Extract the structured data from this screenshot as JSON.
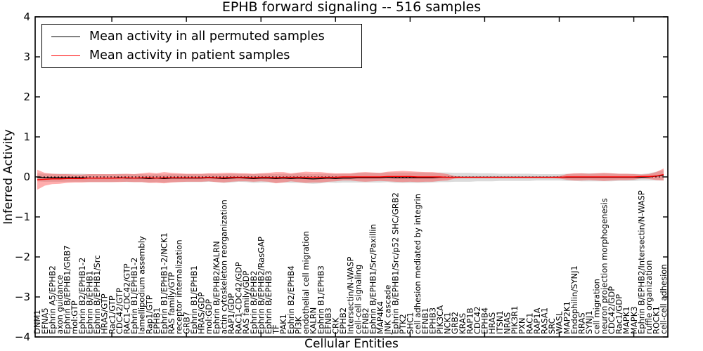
{
  "title": "EPHB forward signaling -- 516 samples",
  "legend": {
    "items": [
      {
        "label": "Mean activity in all permuted samples",
        "color": "#000000"
      },
      {
        "label": "Mean activity in patient samples",
        "color": "#ff0000"
      }
    ]
  },
  "chart_data": {
    "type": "line",
    "title": "EPHB forward signaling -- 516 samples",
    "xlabel": "Cellular Entities",
    "ylabel": "Inferred Activity",
    "ylim": [
      -4,
      4
    ],
    "yticks": {
      "values": [
        -4,
        -3,
        -2,
        -1,
        0,
        1,
        2,
        3,
        4
      ],
      "labels": [
        "−4",
        "−3",
        "−2",
        "−1",
        "0",
        "1",
        "2",
        "3",
        "4"
      ]
    },
    "x_major_tick_every": 10,
    "zero_line": {
      "style": "dotted",
      "color": "#000000",
      "y": 0
    },
    "grid": false,
    "legend_position": "upper left",
    "categories": [
      "DNM1",
      "EFNA5",
      "Ephrin A5/EPHB2",
      "axon guidance",
      "Ephrin B/EPHB1/GRB7",
      "mol:GTP",
      "Ephrin B2/EPHB1-2",
      "Ephrin B/EPHB1",
      "Ephrin B/EPHB1/Src",
      "HRAS/GTP",
      "Rac1/GTP",
      "CDC42/GTP",
      "RAC1-CDC42/GTP",
      "Ephrin B1/EPHB1-2",
      "lamellipodium assembly",
      "Rap1/GTP",
      "EPHB1",
      "Ephrin B1/EPHB1-2/NCK1",
      "RAS family/GTP",
      "receptor internalization",
      "GRB7",
      "Ephrin B1/EPHB1",
      "HRAS/GDP",
      "mol:GDP",
      "Ephrin B/EPHB2/KALRN",
      "actin cytoskeleton reorganization",
      "RAP1/GDP",
      "RAC1-CDC42/GDP",
      "RAS family/GDP",
      "Ephrin B/EPHB2",
      "Ephrin B/EPHB2/RasGAP",
      "Ephrin B/EPHB3",
      "TF",
      "PAK1",
      "Ephrin B2/EPHB4",
      "PI3K",
      "endothelial cell migration",
      "KALRN",
      "Ephrin B1/EPHB3",
      "EFNB3",
      "CRK",
      "EPHB2",
      "Intersectin/N-WASP",
      "cell-cell signaling",
      "EFNB2",
      "Ephrin B/EPHB1/Src/Paxillin",
      "MAP4K4",
      "JNK cascade",
      "Ephrin B/EPHB1/Src/p52 SHC/GRB2",
      "PTK2",
      "SHC1",
      "cell adhesion mediated by integrin",
      "EFNB1",
      "EPHB3",
      "PIK3CA",
      "NCK1",
      "GRB2",
      "KRAS",
      "RAP1B",
      "CDC42",
      "EPHB4",
      "HRAS",
      "ITSN1",
      "NRAS",
      "PIK3R1",
      "PXN",
      "RAC1",
      "RAP1A",
      "RASA1",
      "SRC",
      "WASL",
      "MAP2K1",
      "Endophilin/SYNJ1",
      "RRAS",
      "SYNJ1",
      "cell migration",
      "neuron projection morphogenesis",
      "CDC42/GDP",
      "Rac1/GDP",
      "MAPK1",
      "MAPK3",
      "Ephrin B/EPHB2/Intersectin/N-WASP",
      "ruffle organization",
      "ROCK1",
      "cell-cell adhesion"
    ],
    "series": [
      {
        "name": "Mean activity in all permuted samples",
        "color": "#000000",
        "band_color": "#999999",
        "band_opacity": 0.35,
        "values": [
          -0.01,
          -0.02,
          -0.02,
          -0.02,
          -0.02,
          -0.02,
          -0.02,
          -0.03,
          -0.03,
          -0.03,
          -0.03,
          -0.02,
          -0.03,
          -0.03,
          -0.03,
          -0.04,
          -0.03,
          -0.04,
          -0.03,
          -0.03,
          -0.03,
          -0.03,
          -0.03,
          -0.02,
          -0.03,
          -0.04,
          -0.03,
          -0.02,
          -0.03,
          -0.04,
          -0.03,
          -0.03,
          -0.04,
          -0.03,
          -0.04,
          -0.03,
          -0.04,
          -0.05,
          -0.04,
          -0.03,
          -0.04,
          -0.03,
          -0.03,
          -0.02,
          -0.02,
          -0.02,
          -0.02,
          -0.01,
          -0.02,
          -0.02,
          -0.02,
          -0.02,
          -0.02,
          -0.02,
          -0.01,
          -0.01,
          -0.01,
          -0.01,
          -0.01,
          -0.01,
          -0.01,
          -0.01,
          -0.01,
          -0.01,
          -0.01,
          -0.01,
          -0.01,
          -0.01,
          -0.01,
          -0.01,
          -0.01,
          -0.01,
          -0.01,
          -0.01,
          -0.01,
          -0.01,
          -0.01,
          -0.01,
          -0.01,
          -0.01,
          -0.01,
          -0.01,
          0.0,
          0.02,
          0.04
        ],
        "band_halfwidth": [
          0.1,
          0.1,
          0.1,
          0.1,
          0.1,
          0.1,
          0.1,
          0.1,
          0.1,
          0.1,
          0.1,
          0.1,
          0.1,
          0.1,
          0.1,
          0.1,
          0.1,
          0.1,
          0.1,
          0.1,
          0.1,
          0.1,
          0.1,
          0.1,
          0.1,
          0.11,
          0.11,
          0.1,
          0.1,
          0.11,
          0.11,
          0.11,
          0.11,
          0.11,
          0.11,
          0.12,
          0.12,
          0.12,
          0.12,
          0.11,
          0.11,
          0.11,
          0.11,
          0.12,
          0.12,
          0.12,
          0.12,
          0.12,
          0.13,
          0.13,
          0.13,
          0.13,
          0.13,
          0.12,
          0.12,
          0.12,
          0.11,
          0.11,
          0.11,
          0.1,
          0.1,
          0.1,
          0.09,
          0.09,
          0.09,
          0.09,
          0.09,
          0.08,
          0.08,
          0.08,
          0.08,
          0.09,
          0.09,
          0.1,
          0.1,
          0.1,
          0.1,
          0.1,
          0.09,
          0.09,
          0.09,
          0.08,
          0.09,
          0.11,
          0.13
        ]
      },
      {
        "name": "Mean activity in patient samples",
        "color": "#ff0000",
        "band_color": "#ff3333",
        "band_opacity": 0.4,
        "values": [
          -0.07,
          -0.06,
          -0.05,
          -0.05,
          -0.04,
          -0.04,
          -0.04,
          -0.03,
          -0.03,
          -0.03,
          -0.03,
          -0.03,
          -0.02,
          -0.03,
          -0.02,
          -0.02,
          -0.03,
          -0.02,
          -0.02,
          -0.02,
          -0.02,
          -0.02,
          -0.02,
          -0.01,
          -0.02,
          -0.02,
          -0.01,
          -0.01,
          -0.01,
          -0.02,
          -0.01,
          -0.01,
          -0.02,
          -0.01,
          -0.01,
          -0.01,
          -0.01,
          -0.01,
          -0.01,
          -0.01,
          -0.01,
          0.0,
          0.0,
          0.0,
          0.0,
          0.0,
          0.0,
          0.01,
          0.01,
          0.01,
          0.01,
          0.0,
          0.0,
          0.0,
          0.0,
          -0.01,
          -0.01,
          -0.01,
          -0.01,
          -0.01,
          -0.01,
          -0.01,
          -0.01,
          -0.01,
          -0.01,
          -0.01,
          -0.01,
          -0.01,
          -0.01,
          -0.01,
          -0.01,
          0.0,
          0.0,
          0.0,
          0.0,
          0.0,
          0.0,
          0.0,
          0.0,
          0.0,
          0.0,
          0.01,
          0.01,
          0.02,
          0.06
        ],
        "band_halfwidth": [
          0.25,
          0.16,
          0.13,
          0.12,
          0.11,
          0.1,
          0.1,
          0.1,
          0.1,
          0.1,
          0.1,
          0.1,
          0.1,
          0.1,
          0.11,
          0.13,
          0.12,
          0.14,
          0.12,
          0.11,
          0.1,
          0.1,
          0.1,
          0.1,
          0.11,
          0.12,
          0.11,
          0.1,
          0.1,
          0.1,
          0.1,
          0.11,
          0.14,
          0.13,
          0.1,
          0.12,
          0.14,
          0.13,
          0.13,
          0.11,
          0.1,
          0.09,
          0.09,
          0.11,
          0.12,
          0.11,
          0.1,
          0.12,
          0.13,
          0.14,
          0.13,
          0.13,
          0.12,
          0.12,
          0.1,
          0.08,
          0.03,
          0.02,
          0.02,
          0.02,
          0.02,
          0.02,
          0.02,
          0.02,
          0.02,
          0.02,
          0.02,
          0.02,
          0.02,
          0.02,
          0.03,
          0.07,
          0.09,
          0.09,
          0.08,
          0.09,
          0.1,
          0.09,
          0.08,
          0.08,
          0.07,
          0.05,
          0.06,
          0.1,
          0.15
        ]
      }
    ]
  }
}
